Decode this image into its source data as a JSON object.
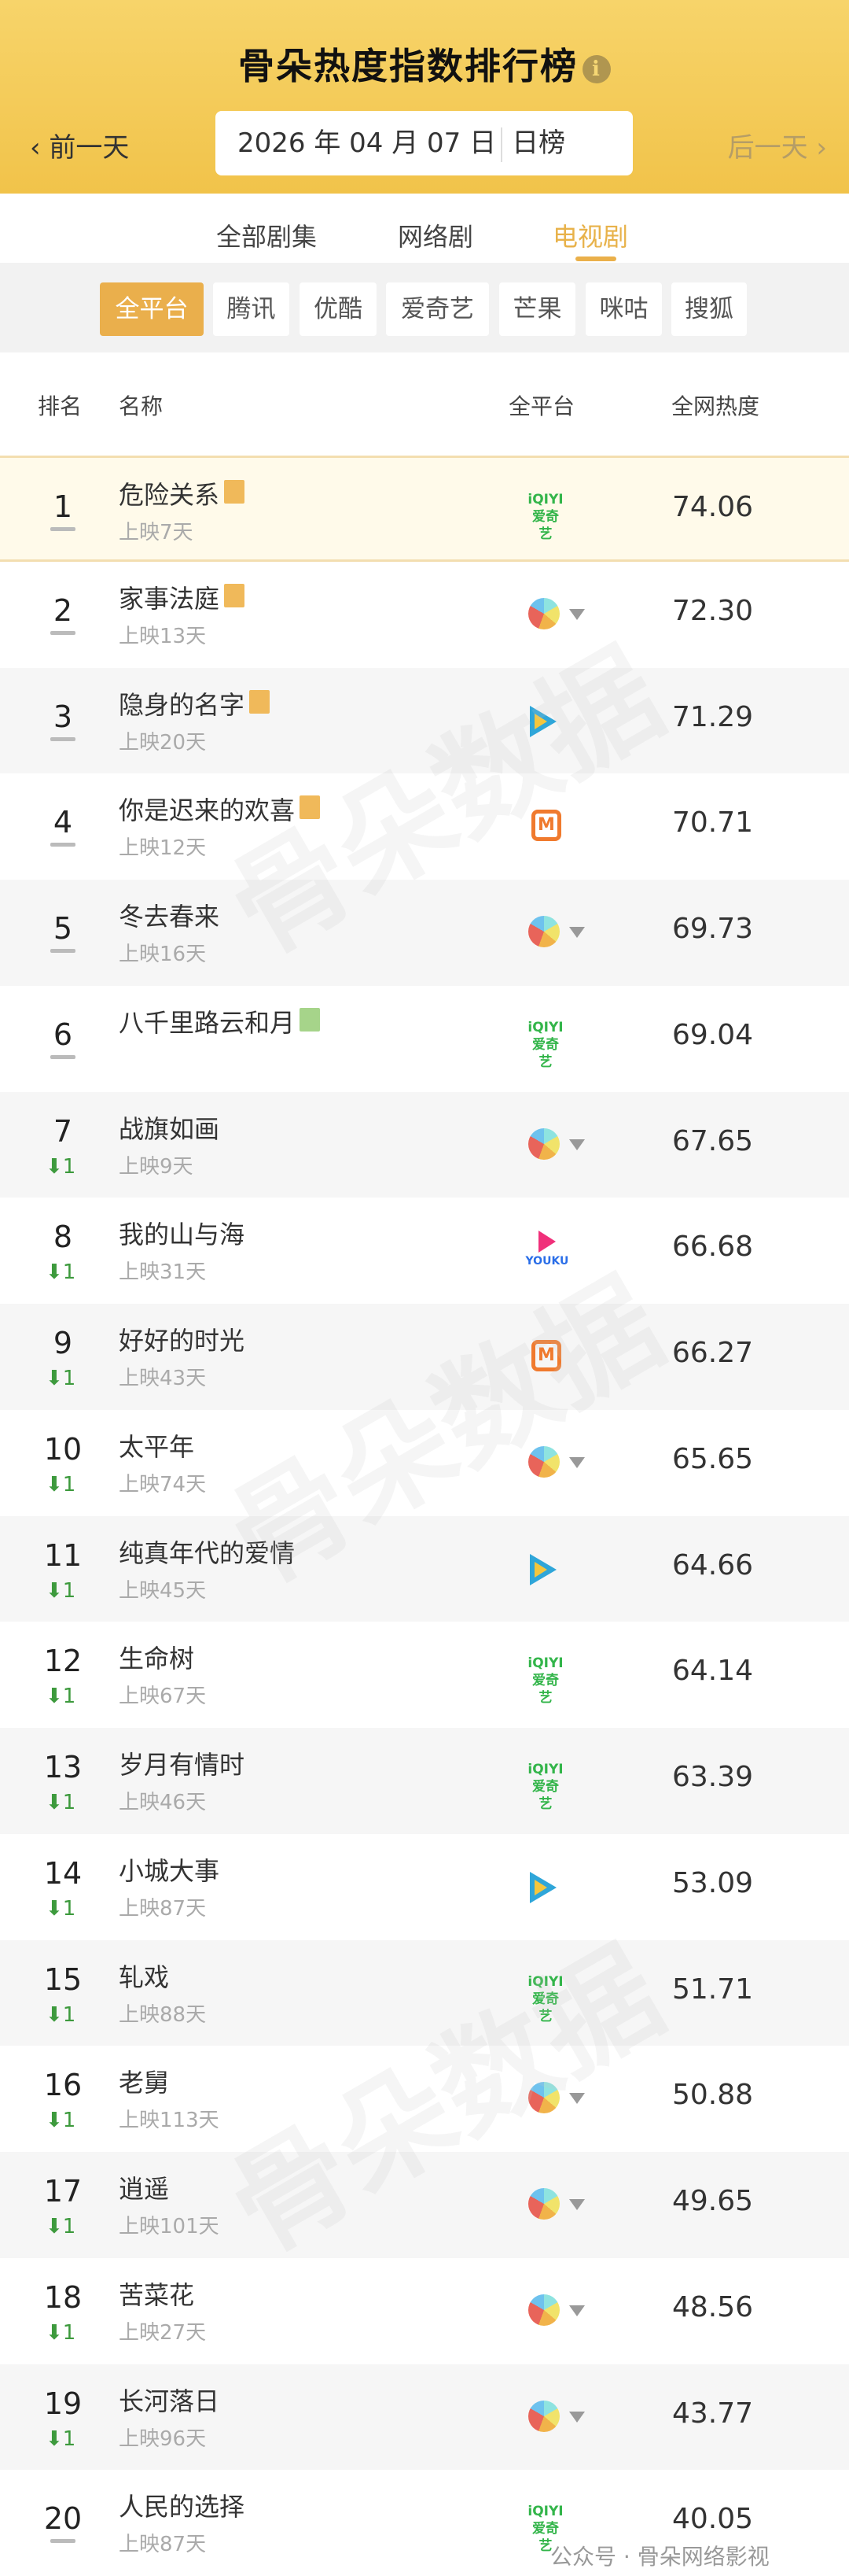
{
  "header": {
    "title": "骨朵热度指数排行榜",
    "info_icon": "info-icon",
    "prev_label": "前一天",
    "next_label": "后一天",
    "date": "2026 年 04 月 07 日",
    "period": "日榜"
  },
  "tabs": [
    {
      "label": "全部剧集",
      "active": false
    },
    {
      "label": "网络剧",
      "active": false
    },
    {
      "label": "电视剧",
      "active": true
    }
  ],
  "platform_filters": [
    {
      "label": "全平台",
      "active": true
    },
    {
      "label": "腾讯",
      "active": false
    },
    {
      "label": "优酷",
      "active": false
    },
    {
      "label": "爱奇艺",
      "active": false
    },
    {
      "label": "芒果",
      "active": false
    },
    {
      "label": "咪咕",
      "active": false
    },
    {
      "label": "搜狐",
      "active": false
    }
  ],
  "columns": {
    "rank": "排名",
    "name": "名称",
    "platform": "全平台",
    "heat": "全网热度"
  },
  "rows": [
    {
      "rank": "1",
      "name": "危险关系",
      "badge": "exclusive",
      "days": "上映7天",
      "platform": "iqiyi",
      "score": "74.06",
      "change": ""
    },
    {
      "rank": "2",
      "name": "家事法庭",
      "badge": "exclusive",
      "days": "上映13天",
      "platform": "multi",
      "score": "72.30",
      "change": ""
    },
    {
      "rank": "3",
      "name": "隐身的名字",
      "badge": "exclusive",
      "days": "上映20天",
      "platform": "tencent",
      "score": "71.29",
      "change": ""
    },
    {
      "rank": "4",
      "name": "你是迟来的欢喜",
      "badge": "exclusive",
      "days": "上映12天",
      "platform": "mango",
      "score": "70.71",
      "change": ""
    },
    {
      "rank": "5",
      "name": "冬去春来",
      "badge": "",
      "days": "上映16天",
      "platform": "multi",
      "score": "69.73",
      "change": ""
    },
    {
      "rank": "6",
      "name": "八千里路云和月",
      "badge": "new",
      "days": "",
      "platform": "iqiyi",
      "score": "69.04",
      "change": ""
    },
    {
      "rank": "7",
      "name": "战旗如画",
      "badge": "",
      "days": "上映9天",
      "platform": "multi",
      "score": "67.65",
      "change": "1"
    },
    {
      "rank": "8",
      "name": "我的山与海",
      "badge": "",
      "days": "上映31天",
      "platform": "youku",
      "score": "66.68",
      "change": "1"
    },
    {
      "rank": "9",
      "name": "好好的时光",
      "badge": "",
      "days": "上映43天",
      "platform": "mango",
      "score": "66.27",
      "change": "1"
    },
    {
      "rank": "10",
      "name": "太平年",
      "badge": "",
      "days": "上映74天",
      "platform": "multi",
      "score": "65.65",
      "change": "1"
    },
    {
      "rank": "11",
      "name": "纯真年代的爱情",
      "badge": "",
      "days": "上映45天",
      "platform": "tencent",
      "score": "64.66",
      "change": "1"
    },
    {
      "rank": "12",
      "name": "生命树",
      "badge": "",
      "days": "上映67天",
      "platform": "iqiyi",
      "score": "64.14",
      "change": "1"
    },
    {
      "rank": "13",
      "name": "岁月有情时",
      "badge": "",
      "days": "上映46天",
      "platform": "iqiyi",
      "score": "63.39",
      "change": "1"
    },
    {
      "rank": "14",
      "name": "小城大事",
      "badge": "",
      "days": "上映87天",
      "platform": "tencent",
      "score": "53.09",
      "change": "1"
    },
    {
      "rank": "15",
      "name": "轧戏",
      "badge": "",
      "days": "上映88天",
      "platform": "iqiyi",
      "score": "51.71",
      "change": "1"
    },
    {
      "rank": "16",
      "name": "老舅",
      "badge": "",
      "days": "上映113天",
      "platform": "multi",
      "score": "50.88",
      "change": "1"
    },
    {
      "rank": "17",
      "name": "逍遥",
      "badge": "",
      "days": "上映101天",
      "platform": "multi",
      "score": "49.65",
      "change": "1"
    },
    {
      "rank": "18",
      "name": "苦菜花",
      "badge": "",
      "days": "上映27天",
      "platform": "multi",
      "score": "48.56",
      "change": "1"
    },
    {
      "rank": "19",
      "name": "长河落日",
      "badge": "",
      "days": "上映96天",
      "platform": "multi",
      "score": "43.77",
      "change": "1"
    },
    {
      "rank": "20",
      "name": "人民的选择",
      "badge": "",
      "days": "上映87天",
      "platform": "iqiyi",
      "score": "40.05",
      "change": ""
    }
  ],
  "platform_logos": {
    "iqiyi": [
      "iQIYI",
      "爱奇艺"
    ],
    "youku": "YOUKU",
    "mango": "M"
  },
  "change_arrow": "⬇",
  "watermark": "骨朵数据",
  "footer_watermark": "公众号 · 骨朵网络影视",
  "colors": {
    "accent": "#eaaf4c",
    "header": "#f3c851",
    "down": "#3d9a3d"
  }
}
